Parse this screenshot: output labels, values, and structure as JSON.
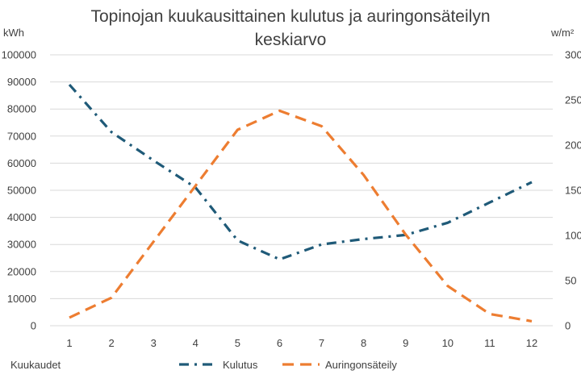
{
  "chart_data": {
    "type": "line",
    "title_lines": [
      "Topinojan kuukausittainen kulutus ja auringonsäteilyn",
      "keskiarvo"
    ],
    "left_unit": "kWh",
    "right_unit": "w/m²",
    "xlabel": "Kuukaudet",
    "categories": [
      "1",
      "2",
      "3",
      "4",
      "5",
      "6",
      "7",
      "8",
      "9",
      "10",
      "11",
      "12"
    ],
    "y_left": {
      "min": 0,
      "max": 100000,
      "step": 10000,
      "ticks": [
        "0",
        "10000",
        "20000",
        "30000",
        "40000",
        "50000",
        "60000",
        "70000",
        "80000",
        "90000",
        "100000"
      ]
    },
    "y_right": {
      "min": 0,
      "max": 300,
      "step": 50,
      "ticks": [
        "0",
        "50",
        "100",
        "150",
        "200",
        "250",
        "300"
      ]
    },
    "grid": true,
    "legend_position": "bottom",
    "series": [
      {
        "name": "Kulutus",
        "axis": "left",
        "color": "#1f5a78",
        "dash": "dash-dot",
        "values": [
          89000,
          71500,
          61000,
          51000,
          31500,
          24500,
          30000,
          32000,
          33500,
          38000,
          45500,
          53000
        ]
      },
      {
        "name": "Auringonsäteily",
        "axis": "right",
        "color": "#ed7d31",
        "dash": "dash",
        "values": [
          9,
          31,
          93,
          155,
          217,
          238,
          221,
          167,
          101,
          44,
          13,
          5
        ]
      }
    ]
  }
}
